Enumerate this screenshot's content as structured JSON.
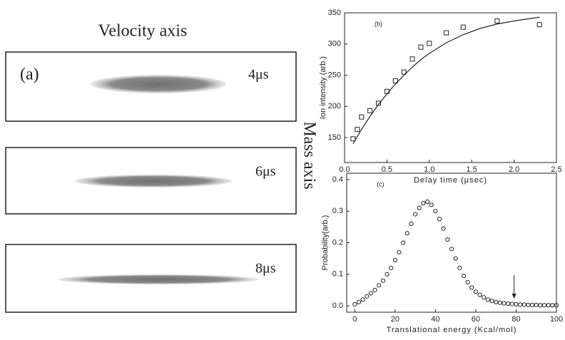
{
  "panel_a": {
    "title": "Velocity axis",
    "label": "(a)",
    "side_label": "Mass axis",
    "frames": [
      "4μs",
      "6μs",
      "8μs"
    ]
  },
  "chart_data": [
    {
      "type": "scatter",
      "label": "(b)",
      "x_label": "Delay time (μsec)",
      "y_label": "Ion intensity (arb.)",
      "xlim": [
        0,
        2.5
      ],
      "ylim": [
        110,
        350
      ],
      "xticks": [
        {
          "value": 0,
          "label": "0.0"
        },
        {
          "value": 0.5,
          "label": "0.5"
        },
        {
          "value": 1,
          "label": "1.0"
        },
        {
          "value": 1.5,
          "label": "1.5"
        },
        {
          "value": 2,
          "label": "2.0"
        },
        {
          "value": 2.5,
          "label": "2.5"
        }
      ],
      "yticks": [
        150,
        200,
        250,
        300,
        350
      ],
      "series": [
        {
          "marker": "square",
          "color": "#222222",
          "x": [
            0.1,
            0.15,
            0.2,
            0.3,
            0.4,
            0.5,
            0.6,
            0.7,
            0.8,
            0.9,
            1.0,
            1.2,
            1.4,
            1.8,
            2.3
          ],
          "values": [
            148,
            163,
            183,
            193,
            205,
            224,
            241,
            255,
            276,
            295,
            301,
            318,
            327,
            337,
            331
          ]
        },
        {
          "marker": "line",
          "color": "#222222",
          "x": [
            0.1,
            0.2,
            0.3,
            0.4,
            0.5,
            0.6,
            0.7,
            0.8,
            0.9,
            1.0,
            1.2,
            1.4,
            1.6,
            1.8,
            2.0,
            2.2,
            2.3
          ],
          "values": [
            140,
            163,
            184,
            203,
            220,
            236,
            250,
            263,
            275,
            285,
            302,
            315,
            325,
            332,
            337,
            341,
            343
          ]
        }
      ]
    },
    {
      "type": "scatter",
      "label": "(c)",
      "x_label": "Translational energy (Kcal/mol)",
      "y_label": "Probability(arb.)",
      "xlim": [
        -4,
        100
      ],
      "ylim": [
        -0.02,
        0.42
      ],
      "xticks": [
        0,
        20,
        40,
        60,
        80,
        100
      ],
      "yticks": [
        {
          "value": 0,
          "label": "0.0"
        },
        0.1,
        0.2,
        0.3,
        0.4
      ],
      "arrow_x": 79,
      "series": [
        {
          "marker": "circle",
          "color": "#222222",
          "x": [
            0,
            2,
            4,
            6,
            8,
            10,
            12,
            14,
            16,
            18,
            20,
            22,
            24,
            26,
            28,
            30,
            32,
            34,
            36,
            38,
            40,
            42,
            44,
            46,
            48,
            50,
            52,
            54,
            56,
            58,
            60,
            62,
            64,
            66,
            68,
            70,
            72,
            74,
            76,
            78,
            80,
            82,
            84,
            86,
            88,
            90,
            92,
            94,
            96,
            98,
            100
          ],
          "values": [
            0.005,
            0.012,
            0.02,
            0.03,
            0.04,
            0.05,
            0.065,
            0.08,
            0.1,
            0.12,
            0.145,
            0.17,
            0.2,
            0.23,
            0.26,
            0.29,
            0.31,
            0.325,
            0.33,
            0.32,
            0.3,
            0.275,
            0.245,
            0.21,
            0.18,
            0.15,
            0.12,
            0.095,
            0.075,
            0.058,
            0.045,
            0.035,
            0.027,
            0.02,
            0.016,
            0.012,
            0.01,
            0.008,
            0.007,
            0.006,
            0.005,
            0.004,
            0.004,
            0.003,
            0.003,
            0.003,
            0.002,
            0.002,
            0.002,
            0.002,
            0.002
          ]
        }
      ]
    }
  ]
}
